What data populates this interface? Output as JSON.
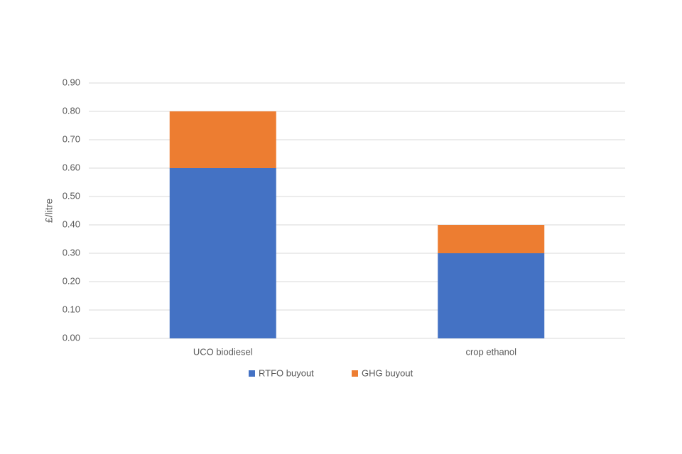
{
  "chart_data": {
    "type": "stacked_bar",
    "y_label": "£/litre",
    "categories": [
      "UCO biodiesel",
      "crop ethanol"
    ],
    "series": [
      {
        "name": "RTFO buyout",
        "color": "#4472c4",
        "values": [
          0.6,
          0.3
        ]
      },
      {
        "name": "GHG buyout",
        "color": "#ed7d31",
        "values": [
          0.2,
          0.1
        ]
      }
    ],
    "ylim": [
      0,
      0.9
    ],
    "yticks": [
      {
        "value": 0,
        "label": "0.00"
      },
      {
        "value": 0.1,
        "label": "0.10"
      },
      {
        "value": 0.2,
        "label": "0.20"
      },
      {
        "value": 0.3,
        "label": "0.30"
      },
      {
        "value": 0.4,
        "label": "0.40"
      },
      {
        "value": 0.5,
        "label": "0.50"
      },
      {
        "value": 0.6,
        "label": "0.60"
      },
      {
        "value": 0.7,
        "label": "0.70"
      },
      {
        "value": 0.8,
        "label": "0.80"
      },
      {
        "value": 0.9,
        "label": "0.90"
      }
    ],
    "grid": true,
    "legend": "bottom"
  }
}
